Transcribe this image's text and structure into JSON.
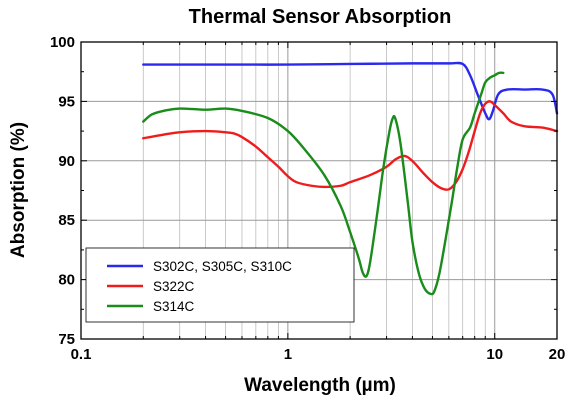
{
  "chart_data": {
    "type": "line",
    "title": "Thermal Sensor Absorption",
    "xlabel": "Wavelength (µm)",
    "ylabel": "Absorption (%)",
    "xscale": "log",
    "xlim": [
      0.1,
      20
    ],
    "ylim": [
      75,
      100
    ],
    "x_ticks": [
      {
        "value": 0.1,
        "label": "0.1"
      },
      {
        "value": 1,
        "label": "1"
      },
      {
        "value": 10,
        "label": "10"
      },
      {
        "value": 20,
        "label": "20"
      }
    ],
    "y_ticks": [
      {
        "value": 75,
        "label": "75"
      },
      {
        "value": 80,
        "label": "80"
      },
      {
        "value": 85,
        "label": "85"
      },
      {
        "value": 90,
        "label": "90"
      },
      {
        "value": 95,
        "label": "95"
      },
      {
        "value": 100,
        "label": "100"
      }
    ],
    "grid": true,
    "legend_position": "bottom-left",
    "series": [
      {
        "name": "S302C, S305C, S310C",
        "color": "#2a2aee",
        "x": [
          0.2,
          0.5,
          1.0,
          2.0,
          4.0,
          6.0,
          7.0,
          7.6,
          8.3,
          9.0,
          9.4,
          9.8,
          10.4,
          11.5,
          14.0,
          17.0,
          19.0,
          20.0
        ],
        "y": [
          98.1,
          98.1,
          98.1,
          98.15,
          98.2,
          98.2,
          98.15,
          97.2,
          95.5,
          94.0,
          93.5,
          94.2,
          95.6,
          96.0,
          96.0,
          96.0,
          95.6,
          94.0
        ]
      },
      {
        "name": "S322C",
        "color": "#ee1c1c",
        "x": [
          0.2,
          0.25,
          0.3,
          0.4,
          0.5,
          0.55,
          0.6,
          0.7,
          0.8,
          0.9,
          1.0,
          1.1,
          1.3,
          1.5,
          1.8,
          2.0,
          2.5,
          3.0,
          3.3,
          3.6,
          3.8,
          4.1,
          4.5,
          5.0,
          5.5,
          6.0,
          6.5,
          7.0,
          7.5,
          8.0,
          8.5,
          9.0,
          9.5,
          10.0,
          11.0,
          12.0,
          14.0,
          17.0,
          20.0
        ],
        "y": [
          91.9,
          92.2,
          92.4,
          92.5,
          92.4,
          92.3,
          92.0,
          91.2,
          90.3,
          89.5,
          88.7,
          88.2,
          87.9,
          87.8,
          87.9,
          88.2,
          88.8,
          89.5,
          90.1,
          90.4,
          90.3,
          89.8,
          89.0,
          88.2,
          87.7,
          87.6,
          88.2,
          89.3,
          90.8,
          92.5,
          94.0,
          94.8,
          95.0,
          94.7,
          94.0,
          93.3,
          92.9,
          92.8,
          92.5
        ]
      },
      {
        "name": "S314C",
        "color": "#1a8c1a",
        "x": [
          0.2,
          0.22,
          0.25,
          0.3,
          0.4,
          0.5,
          0.6,
          0.8,
          1.0,
          1.2,
          1.5,
          1.8,
          2.0,
          2.2,
          2.3,
          2.4,
          2.5,
          2.7,
          2.9,
          3.1,
          3.2,
          3.3,
          3.5,
          3.8,
          4.0,
          4.3,
          4.6,
          4.9,
          5.1,
          5.4,
          5.8,
          6.2,
          6.6,
          7.0,
          7.6,
          8.0,
          8.6,
          9.0,
          9.5,
          10.0,
          10.5,
          11.0
        ],
        "y": [
          93.3,
          93.9,
          94.2,
          94.4,
          94.3,
          94.4,
          94.2,
          93.6,
          92.5,
          91.0,
          88.8,
          86.2,
          84.0,
          81.8,
          80.6,
          80.3,
          81.5,
          85.5,
          89.5,
          92.5,
          93.5,
          93.6,
          91.5,
          86.5,
          83.2,
          80.5,
          79.2,
          78.8,
          79.0,
          80.5,
          83.5,
          86.5,
          89.5,
          91.8,
          92.8,
          94.0,
          95.6,
          96.6,
          97.0,
          97.2,
          97.4,
          97.4
        ]
      }
    ]
  }
}
